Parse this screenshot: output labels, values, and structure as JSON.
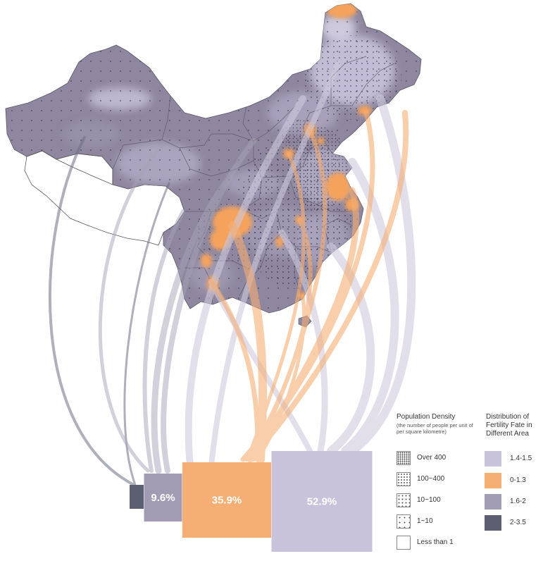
{
  "colors": {
    "rate_1_4_1_5": "#c8c3da",
    "rate_0_1_3": "#f5ae74",
    "rate_1_6_2": "#a19cb3",
    "rate_2_3_5": "#5c5f71",
    "map_base": "#8e879f"
  },
  "bars": [
    {
      "key": "rate_2_3_5",
      "value": 1.6,
      "label": ""
    },
    {
      "key": "rate_1_6_2",
      "value": 9.6,
      "label": "9.6%"
    },
    {
      "key": "rate_0_1_3",
      "value": 35.9,
      "label": "35.9%"
    },
    {
      "key": "rate_1_4_1_5",
      "value": 52.9,
      "label": "52.9%"
    }
  ],
  "legend_density": {
    "title": "Population Density",
    "subtitle": "(the number of people per unit of per square kilometre)",
    "items": [
      {
        "label": "Over 400"
      },
      {
        "label": "100~400"
      },
      {
        "label": "10~100"
      },
      {
        "label": "1~10"
      },
      {
        "label": "Less than 1"
      }
    ]
  },
  "legend_fertility": {
    "title": "Distribution of Fertility Fate in Different Area",
    "items": [
      {
        "label": "1.4-1.5",
        "key": "rate_1_4_1_5"
      },
      {
        "label": "0-1.3",
        "key": "rate_0_1_3"
      },
      {
        "label": "1.6-2",
        "key": "rate_1_6_2"
      },
      {
        "label": "2-3.5",
        "key": "rate_2_3_5"
      }
    ]
  }
}
